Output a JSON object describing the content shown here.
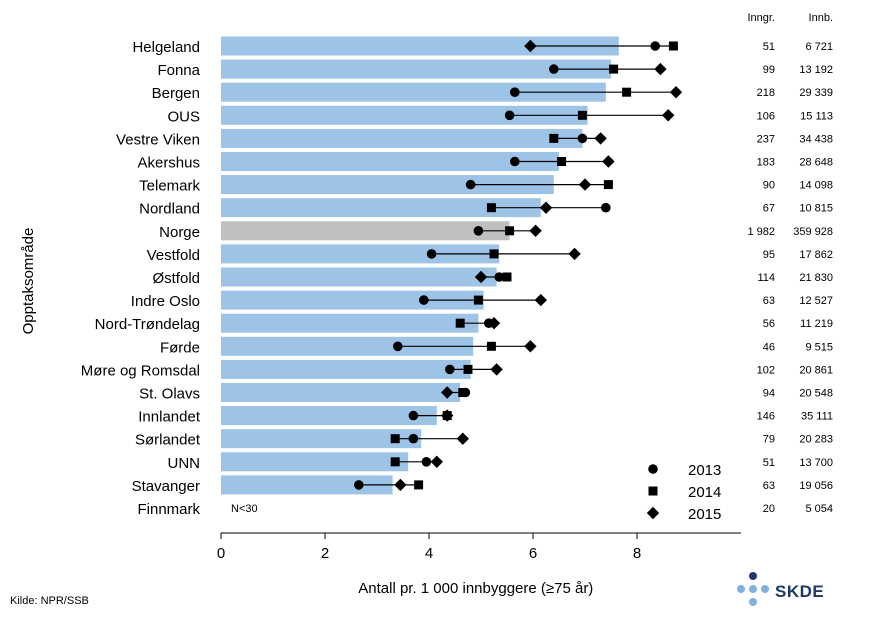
{
  "chart_data": {
    "type": "bar",
    "ylabel": "Opptaksområde",
    "xlabel": "Antall pr. 1 000 innbyggere (≥75 år)",
    "xlim": [
      0,
      10
    ],
    "xticks": [
      0,
      2,
      4,
      6,
      8
    ],
    "col_headers": [
      "Inngr.",
      "Innb."
    ],
    "note": "N<30",
    "legend": [
      {
        "label": "2013",
        "marker": "circle"
      },
      {
        "label": "2014",
        "marker": "square"
      },
      {
        "label": "2015",
        "marker": "diamond"
      }
    ],
    "rows": [
      {
        "name": "Helgeland",
        "bar": 7.65,
        "y2013": 8.35,
        "y2014": 8.7,
        "y2015": 5.95,
        "inngr": "51",
        "innb": "6 721",
        "highlight": false
      },
      {
        "name": "Fonna",
        "bar": 7.5,
        "y2013": 6.4,
        "y2014": 7.55,
        "y2015": 8.45,
        "inngr": "99",
        "innb": "13 192",
        "highlight": false
      },
      {
        "name": "Bergen",
        "bar": 7.4,
        "y2013": 5.65,
        "y2014": 7.8,
        "y2015": 8.75,
        "inngr": "218",
        "innb": "29 339",
        "highlight": false
      },
      {
        "name": "OUS",
        "bar": 7.05,
        "y2013": 5.55,
        "y2014": 6.95,
        "y2015": 8.6,
        "inngr": "106",
        "innb": "15 113",
        "highlight": false
      },
      {
        "name": "Vestre Viken",
        "bar": 6.95,
        "y2013": 6.95,
        "y2014": 6.4,
        "y2015": 7.3,
        "inngr": "237",
        "innb": "34 438",
        "highlight": false
      },
      {
        "name": "Akershus",
        "bar": 6.5,
        "y2013": 5.65,
        "y2014": 6.55,
        "y2015": 7.45,
        "inngr": "183",
        "innb": "28 648",
        "highlight": false
      },
      {
        "name": "Telemark",
        "bar": 6.4,
        "y2013": 4.8,
        "y2014": 7.45,
        "y2015": 7.0,
        "inngr": "90",
        "innb": "14 098",
        "highlight": false
      },
      {
        "name": "Nordland",
        "bar": 6.15,
        "y2013": 7.4,
        "y2014": 5.2,
        "y2015": 6.25,
        "inngr": "67",
        "innb": "10 815",
        "highlight": false
      },
      {
        "name": "Norge",
        "bar": 5.55,
        "y2013": 4.95,
        "y2014": 5.55,
        "y2015": 6.05,
        "inngr": "1 982",
        "innb": "359 928",
        "highlight": true
      },
      {
        "name": "Vestfold",
        "bar": 5.35,
        "y2013": 4.05,
        "y2014": 5.25,
        "y2015": 6.8,
        "inngr": "95",
        "innb": "17 862",
        "highlight": false
      },
      {
        "name": "Østfold",
        "bar": 5.3,
        "y2013": 5.35,
        "y2014": 5.5,
        "y2015": 5.0,
        "inngr": "114",
        "innb": "21 830",
        "highlight": false
      },
      {
        "name": "Indre Oslo",
        "bar": 5.05,
        "y2013": 3.9,
        "y2014": 4.95,
        "y2015": 6.15,
        "inngr": "63",
        "innb": "12 527",
        "highlight": false
      },
      {
        "name": "Nord-Trøndelag",
        "bar": 4.95,
        "y2013": 5.15,
        "y2014": 4.6,
        "y2015": 5.25,
        "inngr": "56",
        "innb": "11 219",
        "highlight": false
      },
      {
        "name": "Førde",
        "bar": 4.85,
        "y2013": 3.4,
        "y2014": 5.2,
        "y2015": 5.95,
        "inngr": "46",
        "innb": "9 515",
        "highlight": false
      },
      {
        "name": "Møre og Romsdal",
        "bar": 4.8,
        "y2013": 4.4,
        "y2014": 4.75,
        "y2015": 5.3,
        "inngr": "102",
        "innb": "20 861",
        "highlight": false
      },
      {
        "name": "St. Olavs",
        "bar": 4.6,
        "y2013": 4.7,
        "y2014": 4.65,
        "y2015": 4.35,
        "inngr": "94",
        "innb": "20 548",
        "highlight": false
      },
      {
        "name": "Innlandet",
        "bar": 4.15,
        "y2013": 3.7,
        "y2014": 4.35,
        "y2015": 4.35,
        "inngr": "146",
        "innb": "35 111",
        "highlight": false
      },
      {
        "name": "Sørlandet",
        "bar": 3.85,
        "y2013": 3.7,
        "y2014": 3.35,
        "y2015": 4.65,
        "inngr": "79",
        "innb": "20 283",
        "highlight": false
      },
      {
        "name": "UNN",
        "bar": 3.6,
        "y2013": 3.95,
        "y2014": 3.35,
        "y2015": 4.15,
        "inngr": "51",
        "innb": "13 700",
        "highlight": false
      },
      {
        "name": "Stavanger",
        "bar": 3.3,
        "y2013": 2.65,
        "y2014": 3.8,
        "y2015": 3.45,
        "inngr": "63",
        "innb": "19 056",
        "highlight": false
      },
      {
        "name": "Finnmark",
        "bar": null,
        "y2013": null,
        "y2014": null,
        "y2015": null,
        "inngr": "20",
        "innb": "5 054",
        "highlight": false
      }
    ],
    "colors": {
      "bar": "#9dc3e6",
      "highlight": "#bfbfbf",
      "marker": "#000000"
    }
  },
  "source": "Kilde: NPR/SSB",
  "logo": {
    "text": "SKDE",
    "dot_color": "#7fb0de",
    "dot_dark": "#1f3864"
  }
}
